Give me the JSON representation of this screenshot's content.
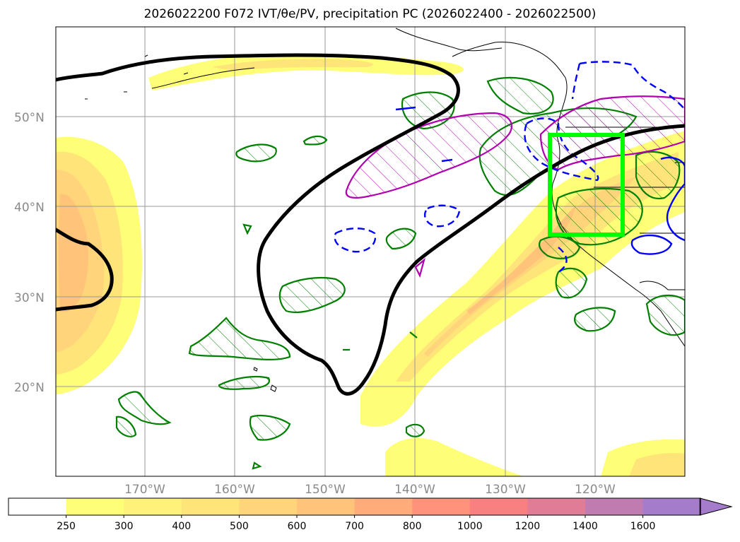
{
  "title": "2026022200 F072 IVT/θe/PV, precipitation PC (2026022400 - 2026022500)",
  "axes": {
    "lat_labels": [
      "50°N",
      "40°N",
      "30°N",
      "20°N"
    ],
    "lon_labels": [
      "170°W",
      "160°W",
      "150°W",
      "140°W",
      "130°W",
      "120°W"
    ]
  },
  "colorbar": {
    "levels": [
      "250",
      "300",
      "400",
      "500",
      "600",
      "700",
      "800",
      "1000",
      "1200",
      "1400",
      "1600"
    ],
    "colors": [
      "#ffff77",
      "#fff27a",
      "#ffe47a",
      "#ffd47a",
      "#ffc47a",
      "#ffab7a",
      "#ff927a",
      "#f98080",
      "#e17c96",
      "#c07cb0",
      "#a57ccb"
    ]
  },
  "highlight_box": {
    "color": "#00ff00"
  },
  "legend_colors": {
    "ivt_contour": "#000000",
    "precip_pc_green": "#008000",
    "pv_magenta": "#b000b0",
    "theta_blue": "#0000ff"
  }
}
